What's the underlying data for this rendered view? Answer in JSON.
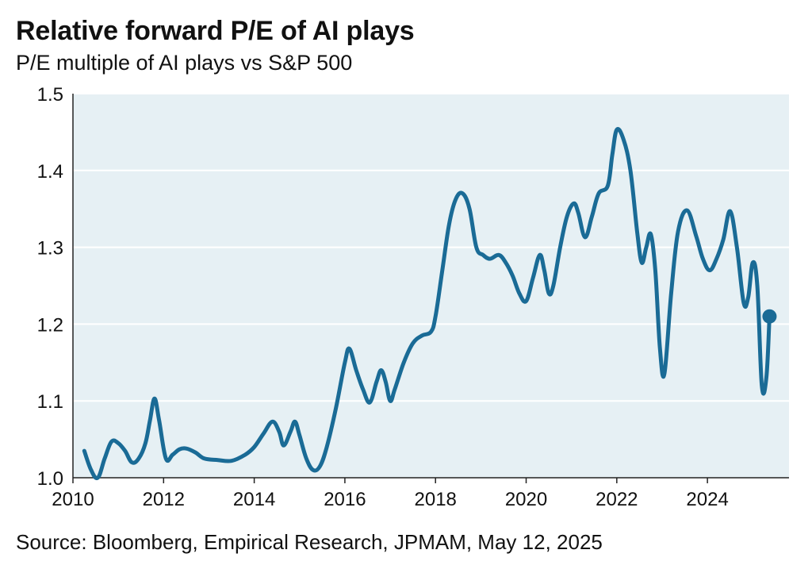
{
  "title": "Relative forward P/E of AI plays",
  "subtitle": "P/E multiple of AI plays vs S&P 500",
  "source": "Source: Bloomberg, Empirical Research, JPMAM, May 12, 2025",
  "colors": {
    "line": "#1a6b96",
    "plot_bg": "#e6f0f4",
    "grid": "#ffffff",
    "axis": "#222222"
  },
  "chart_data": {
    "type": "line",
    "title": "Relative forward P/E of AI plays",
    "subtitle": "P/E multiple of AI plays vs S&P 500",
    "xlabel": "",
    "ylabel": "",
    "xlim": [
      2010,
      2025.8
    ],
    "ylim": [
      1.0,
      1.5
    ],
    "grid": "horizontal",
    "x_ticks": [
      "2010",
      "2012",
      "2014",
      "2016",
      "2018",
      "2020",
      "2022",
      "2024"
    ],
    "y_ticks": [
      "1.0",
      "1.1",
      "1.2",
      "1.3",
      "1.4",
      "1.5"
    ],
    "series": [
      {
        "end_marker": true,
        "points": [
          [
            2010.25,
            1.035
          ],
          [
            2010.4,
            1.01
          ],
          [
            2010.55,
            1.0
          ],
          [
            2010.7,
            1.025
          ],
          [
            2010.85,
            1.047
          ],
          [
            2011.0,
            1.045
          ],
          [
            2011.15,
            1.035
          ],
          [
            2011.3,
            1.02
          ],
          [
            2011.45,
            1.025
          ],
          [
            2011.6,
            1.045
          ],
          [
            2011.7,
            1.075
          ],
          [
            2011.8,
            1.103
          ],
          [
            2011.9,
            1.075
          ],
          [
            2012.05,
            1.025
          ],
          [
            2012.2,
            1.03
          ],
          [
            2012.35,
            1.037
          ],
          [
            2012.5,
            1.038
          ],
          [
            2012.7,
            1.033
          ],
          [
            2012.9,
            1.025
          ],
          [
            2013.2,
            1.023
          ],
          [
            2013.5,
            1.022
          ],
          [
            2013.8,
            1.03
          ],
          [
            2014.0,
            1.04
          ],
          [
            2014.2,
            1.057
          ],
          [
            2014.4,
            1.073
          ],
          [
            2014.55,
            1.06
          ],
          [
            2014.65,
            1.042
          ],
          [
            2014.8,
            1.06
          ],
          [
            2014.9,
            1.073
          ],
          [
            2015.0,
            1.055
          ],
          [
            2015.15,
            1.025
          ],
          [
            2015.3,
            1.01
          ],
          [
            2015.45,
            1.015
          ],
          [
            2015.6,
            1.04
          ],
          [
            2015.8,
            1.09
          ],
          [
            2016.0,
            1.15
          ],
          [
            2016.1,
            1.168
          ],
          [
            2016.25,
            1.14
          ],
          [
            2016.4,
            1.115
          ],
          [
            2016.55,
            1.098
          ],
          [
            2016.7,
            1.125
          ],
          [
            2016.8,
            1.14
          ],
          [
            2016.9,
            1.125
          ],
          [
            2017.0,
            1.1
          ],
          [
            2017.1,
            1.115
          ],
          [
            2017.3,
            1.15
          ],
          [
            2017.5,
            1.175
          ],
          [
            2017.7,
            1.185
          ],
          [
            2017.9,
            1.19
          ],
          [
            2018.0,
            1.21
          ],
          [
            2018.15,
            1.27
          ],
          [
            2018.3,
            1.33
          ],
          [
            2018.45,
            1.363
          ],
          [
            2018.6,
            1.37
          ],
          [
            2018.75,
            1.35
          ],
          [
            2018.9,
            1.3
          ],
          [
            2019.05,
            1.29
          ],
          [
            2019.2,
            1.285
          ],
          [
            2019.4,
            1.29
          ],
          [
            2019.55,
            1.28
          ],
          [
            2019.7,
            1.263
          ],
          [
            2019.85,
            1.24
          ],
          [
            2020.0,
            1.23
          ],
          [
            2020.15,
            1.26
          ],
          [
            2020.3,
            1.29
          ],
          [
            2020.4,
            1.27
          ],
          [
            2020.5,
            1.24
          ],
          [
            2020.6,
            1.25
          ],
          [
            2020.75,
            1.3
          ],
          [
            2020.9,
            1.34
          ],
          [
            2021.05,
            1.357
          ],
          [
            2021.15,
            1.345
          ],
          [
            2021.3,
            1.313
          ],
          [
            2021.45,
            1.34
          ],
          [
            2021.6,
            1.37
          ],
          [
            2021.8,
            1.38
          ],
          [
            2021.9,
            1.42
          ],
          [
            2022.0,
            1.453
          ],
          [
            2022.15,
            1.44
          ],
          [
            2022.3,
            1.4
          ],
          [
            2022.45,
            1.32
          ],
          [
            2022.55,
            1.28
          ],
          [
            2022.65,
            1.3
          ],
          [
            2022.75,
            1.317
          ],
          [
            2022.85,
            1.27
          ],
          [
            2022.95,
            1.17
          ],
          [
            2023.05,
            1.135
          ],
          [
            2023.2,
            1.24
          ],
          [
            2023.35,
            1.32
          ],
          [
            2023.55,
            1.348
          ],
          [
            2023.75,
            1.315
          ],
          [
            2023.9,
            1.285
          ],
          [
            2024.05,
            1.27
          ],
          [
            2024.2,
            1.285
          ],
          [
            2024.35,
            1.31
          ],
          [
            2024.5,
            1.347
          ],
          [
            2024.65,
            1.3
          ],
          [
            2024.8,
            1.228
          ],
          [
            2024.9,
            1.235
          ],
          [
            2025.0,
            1.28
          ],
          [
            2025.1,
            1.25
          ],
          [
            2025.2,
            1.12
          ],
          [
            2025.3,
            1.13
          ],
          [
            2025.37,
            1.21
          ]
        ]
      }
    ]
  }
}
